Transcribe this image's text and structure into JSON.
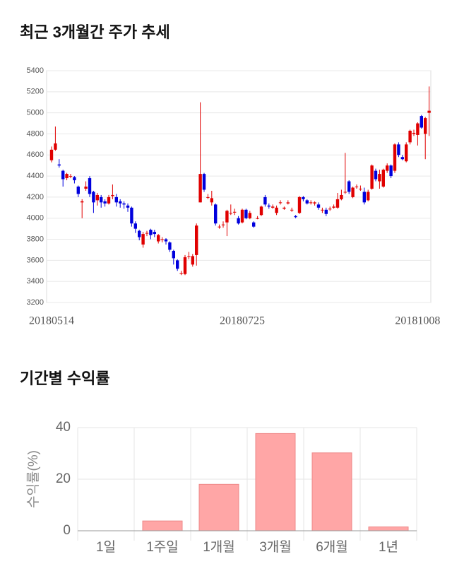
{
  "chart_data": [
    {
      "type": "candlestick",
      "title": "최근 3개월간 주가 추세",
      "categories": [
        "20180514",
        null,
        null,
        null,
        null,
        null,
        null,
        null,
        null,
        null,
        null,
        null,
        null,
        null,
        null,
        null,
        null,
        null,
        null,
        null,
        null,
        null,
        null,
        null,
        null,
        null,
        null,
        null,
        null,
        null,
        null,
        null,
        null,
        null,
        null,
        null,
        null,
        null,
        null,
        null,
        null,
        null,
        null,
        null,
        null,
        null,
        null,
        null,
        null,
        null,
        "20180725",
        null,
        null,
        null,
        null,
        null,
        null,
        null,
        null,
        null,
        null,
        null,
        null,
        null,
        null,
        null,
        null,
        null,
        null,
        null,
        null,
        null,
        null,
        null,
        null,
        null,
        null,
        null,
        null,
        null,
        null,
        null,
        null,
        null,
        null,
        null,
        null,
        null,
        null,
        null,
        null,
        null,
        null,
        null,
        null,
        null,
        "20181008",
        null,
        null,
        null
      ],
      "open": [
        4550,
        4650,
        4510,
        4450,
        4380,
        4400,
        4390,
        4300,
        4150,
        4280,
        4380,
        4250,
        4170,
        4200,
        4160,
        4140,
        4210,
        4200,
        4160,
        4140,
        4120,
        4100,
        3950,
        3880,
        3750,
        3860,
        3890,
        3870,
        3780,
        3800,
        3800,
        3770,
        3690,
        3600,
        3480,
        3470,
        3640,
        3560,
        3650,
        4150,
        4420,
        4200,
        4150,
        4130,
        3920,
        3940,
        3960,
        4050,
        4060,
        4000,
        3960,
        4080,
        4000,
        3960,
        4000,
        4030,
        4200,
        4120,
        4100,
        4050,
        4150,
        4090,
        4140,
        4080,
        4020,
        4050,
        4200,
        4170,
        4150,
        4140,
        4130,
        4080,
        4080,
        4090,
        4100,
        4100,
        4180,
        4250,
        4350,
        4200,
        4300,
        4280,
        4250,
        4170,
        4280,
        4450,
        4350,
        4300,
        4450,
        4500,
        4450,
        4700,
        4580,
        4540,
        4720,
        4800,
        4790,
        4970,
        4800,
        5000
      ],
      "high": [
        4680,
        4870,
        4560,
        4460,
        4430,
        4420,
        4400,
        4310,
        4180,
        4350,
        4400,
        4260,
        4240,
        4220,
        4180,
        4220,
        4320,
        4230,
        4180,
        4160,
        4140,
        4110,
        3970,
        3890,
        3870,
        3880,
        3900,
        3890,
        3850,
        3820,
        3810,
        3780,
        3700,
        3610,
        3500,
        3650,
        3680,
        3660,
        3950,
        5100,
        4430,
        4230,
        4260,
        4140,
        3940,
        3970,
        4080,
        4130,
        4090,
        4020,
        4090,
        4090,
        4070,
        3970,
        4020,
        4120,
        4220,
        4140,
        4130,
        4120,
        4170,
        4110,
        4170,
        4100,
        4030,
        4210,
        4210,
        4180,
        4170,
        4160,
        4150,
        4100,
        4100,
        4110,
        4130,
        4240,
        4270,
        4620,
        4360,
        4300,
        4320,
        4310,
        4290,
        4270,
        4510,
        4470,
        4460,
        4470,
        4520,
        4510,
        4710,
        4720,
        4600,
        4720,
        4840,
        4840,
        4910,
        4980,
        4960,
        5250
      ],
      "low": [
        4530,
        4640,
        4480,
        4300,
        4360,
        4380,
        4330,
        4200,
        4000,
        4260,
        4200,
        4050,
        4120,
        4100,
        4110,
        4130,
        4180,
        4110,
        4100,
        4090,
        4060,
        3920,
        3860,
        3790,
        3720,
        3830,
        3800,
        3820,
        3760,
        3770,
        3750,
        3680,
        3560,
        3500,
        3460,
        3460,
        3610,
        3540,
        3550,
        4150,
        4250,
        4180,
        4120,
        3930,
        3900,
        3910,
        3830,
        4030,
        4030,
        3940,
        3950,
        3990,
        3990,
        3910,
        3990,
        4020,
        4110,
        4090,
        4090,
        4030,
        4130,
        4080,
        4130,
        4060,
        4000,
        4040,
        4160,
        4130,
        4130,
        4120,
        4080,
        4050,
        4020,
        4070,
        4090,
        4090,
        4170,
        4230,
        4230,
        4190,
        4280,
        4260,
        4130,
        4160,
        4270,
        4350,
        4280,
        4290,
        4430,
        4380,
        4430,
        4580,
        4550,
        4530,
        4700,
        4780,
        4690,
        4850,
        4560,
        4780
      ],
      "close": [
        4650,
        4710,
        4500,
        4370,
        4420,
        4400,
        4360,
        4230,
        4160,
        4300,
        4230,
        4150,
        4220,
        4150,
        4140,
        4200,
        4220,
        4150,
        4140,
        4130,
        4100,
        3950,
        3900,
        3820,
        3850,
        3860,
        3840,
        3850,
        3840,
        3800,
        3780,
        3700,
        3620,
        3520,
        3480,
        3630,
        3640,
        3640,
        3930,
        4420,
        4270,
        4200,
        4190,
        3950,
        3920,
        3940,
        4070,
        4050,
        4060,
        3950,
        4080,
        4000,
        4050,
        3920,
        4000,
        4110,
        4130,
        4110,
        4110,
        4100,
        4150,
        4100,
        4150,
        4080,
        4010,
        4200,
        4180,
        4140,
        4150,
        4150,
        4100,
        4080,
        4040,
        4090,
        4110,
        4180,
        4220,
        4250,
        4250,
        4290,
        4300,
        4280,
        4150,
        4250,
        4500,
        4370,
        4420,
        4460,
        4500,
        4400,
        4700,
        4600,
        4560,
        4700,
        4830,
        4810,
        4900,
        4860,
        4950,
        5020
      ],
      "up_color": "#e00000",
      "down_color": "#0000dd",
      "ylim": [
        3200,
        5400
      ],
      "yticks": [
        3200,
        3400,
        3600,
        3800,
        4000,
        4200,
        4400,
        4600,
        4800,
        5000,
        5200,
        5400
      ],
      "grid": true
    },
    {
      "type": "bar",
      "title": "기간별 수익률",
      "ylabel": "수익률(%)",
      "categories": [
        "1일",
        "1주일",
        "1개월",
        "3개월",
        "6개월",
        "1년"
      ],
      "values": [
        0,
        3.8,
        18,
        37.7,
        30.2,
        1.5
      ],
      "color": "#ffa6a6",
      "ylim": [
        0,
        40
      ],
      "yticks": [
        0,
        20,
        40
      ],
      "grid": true
    }
  ]
}
